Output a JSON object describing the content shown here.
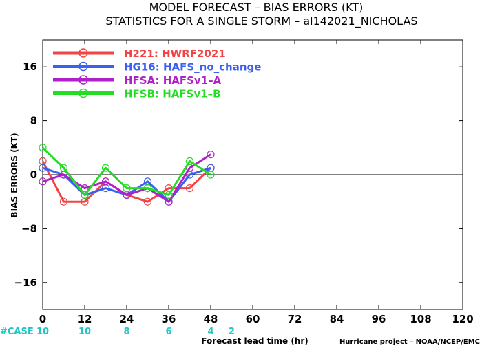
{
  "chart_data": {
    "type": "line",
    "title": "MODEL FORECAST – BIAS ERRORS (KT)",
    "subtitle": "STATISTICS FOR A SINGLE STORM – al142021_NICHOLAS",
    "xlabel": "Forecast lead time (hr)",
    "ylabel": "BIAS ERRORS (KT)",
    "xlim": [
      0,
      120
    ],
    "ylim": [
      -20,
      20
    ],
    "x_ticks": [
      0,
      12,
      24,
      36,
      48,
      60,
      72,
      84,
      96,
      108,
      120
    ],
    "x_tick_labels": [
      "0",
      "12",
      "24",
      "36",
      "48",
      "60",
      "72",
      "84",
      "96",
      "108",
      "120"
    ],
    "y_ticks": [
      16,
      8,
      0,
      -8,
      -16
    ],
    "y_tick_labels": [
      "16",
      "8",
      "0",
      "−8",
      "−16"
    ],
    "zero_line": true,
    "grid": false,
    "legend_position": "top-left",
    "series": [
      {
        "name": "H221: HWRF2021",
        "color": "#f04545",
        "x": [
          0,
          6,
          12,
          18,
          24,
          30,
          36,
          42,
          48
        ],
        "y": [
          2,
          -4,
          -4,
          -1,
          -3,
          -4,
          -2,
          -2,
          1
        ]
      },
      {
        "name": "HG16: HAFS_no_change",
        "color": "#3b5ff0",
        "x": [
          0,
          6,
          12,
          18,
          24,
          30,
          36,
          42,
          48
        ],
        "y": [
          1,
          0,
          -3,
          -2,
          -3,
          -1,
          -4,
          0,
          1
        ]
      },
      {
        "name": "HFSA: HAFSv1–A",
        "color": "#b020c8",
        "x": [
          0,
          6,
          12,
          18,
          24,
          30,
          36,
          42,
          48
        ],
        "y": [
          -1,
          0,
          -2,
          -1,
          -3,
          -2,
          -4,
          1,
          3
        ]
      },
      {
        "name": "HFSB: HAFSv1–B",
        "color": "#22dd22",
        "x": [
          0,
          6,
          12,
          18,
          24,
          30,
          36,
          42,
          48
        ],
        "y": [
          4,
          1,
          -3,
          1,
          -2,
          -2,
          -3,
          2,
          0
        ]
      }
    ],
    "case_counts": {
      "label": "#CASE",
      "x": [
        0,
        12,
        24,
        36,
        48
      ],
      "values": [
        "10",
        "10",
        "8",
        "6",
        "4"
      ],
      "extra_label": "2"
    },
    "credit": "Hurricane project – NOAA/NCEP/EMC"
  }
}
